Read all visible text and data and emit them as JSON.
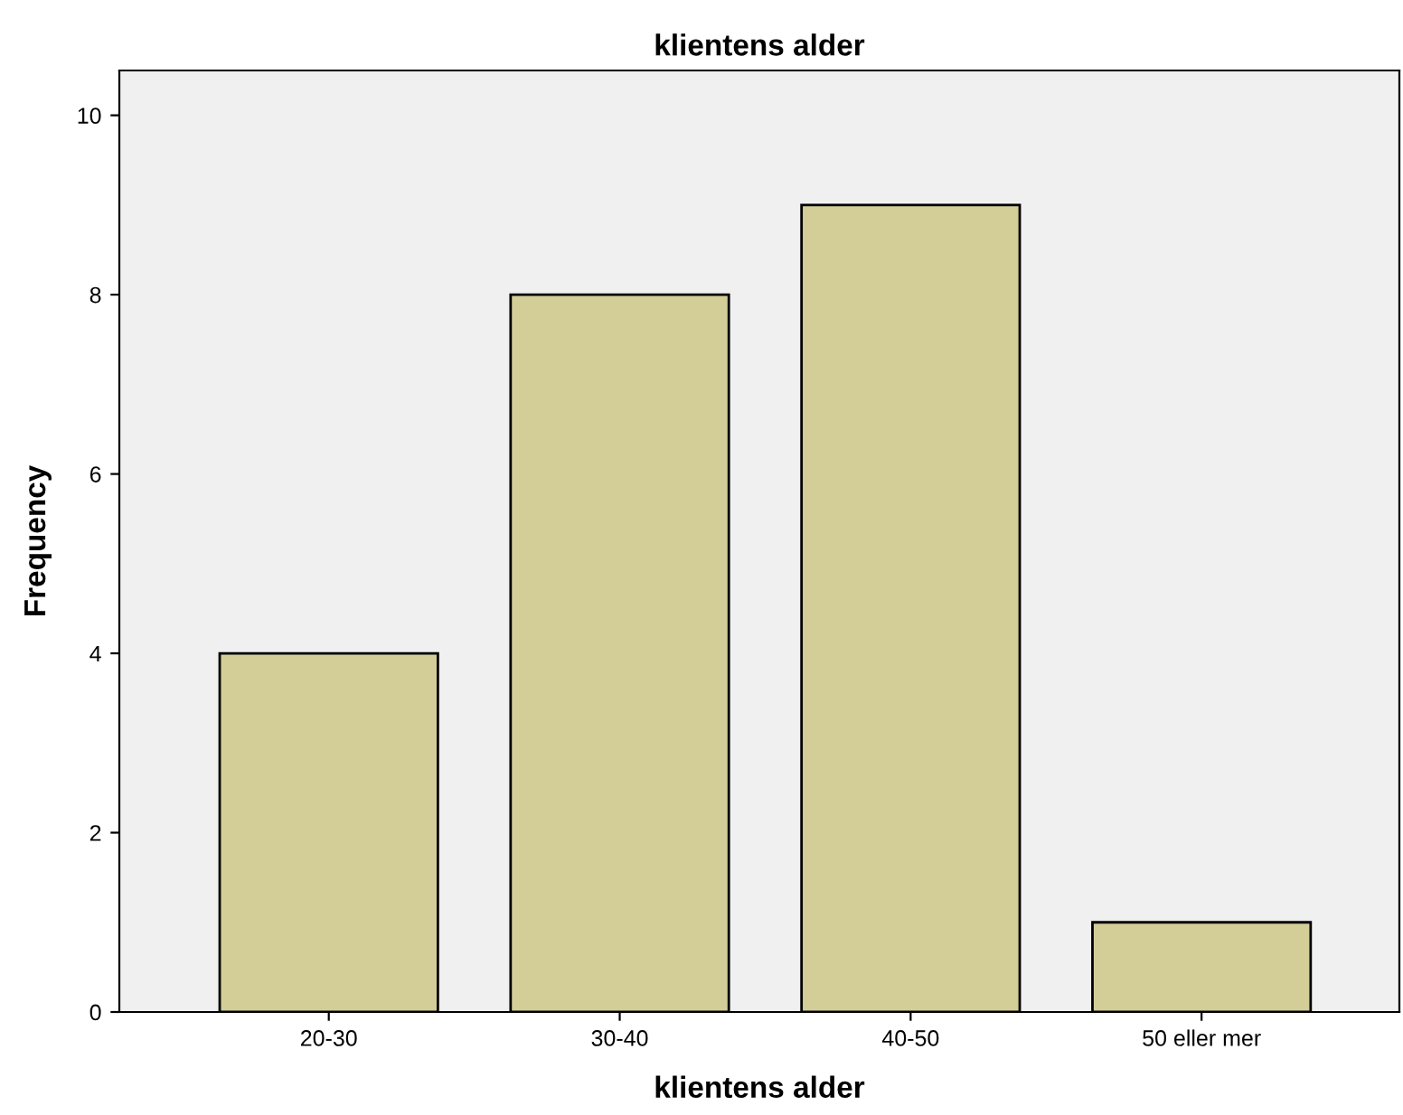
{
  "chart_data": {
    "type": "bar",
    "title": "klientens alder",
    "xlabel": "klientens alder",
    "ylabel": "Frequency",
    "categories": [
      "20-30",
      "30-40",
      "40-50",
      "50 eller mer"
    ],
    "values": [
      4,
      8,
      9,
      1
    ],
    "color": "#d3ce98",
    "ylim": [
      0,
      10.5
    ],
    "yticks": [
      0,
      2,
      4,
      6,
      8,
      10
    ],
    "grid": false
  }
}
